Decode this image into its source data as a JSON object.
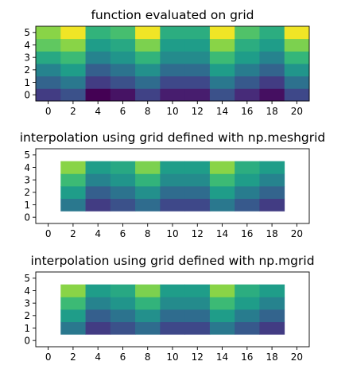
{
  "chart_data": [
    {
      "type": "heatmap",
      "title": "function evaluated on grid",
      "xlabel": "",
      "ylabel": "",
      "xlim": [
        -1,
        21
      ],
      "ylim": [
        -0.5,
        5.5
      ],
      "xticks": [
        "0",
        "2",
        "4",
        "6",
        "8",
        "10",
        "12",
        "14",
        "16",
        "18",
        "20"
      ],
      "yticks": [
        "0",
        "1",
        "2",
        "3",
        "4",
        "5"
      ],
      "x": [
        0,
        2,
        4,
        6,
        8,
        10,
        12,
        14,
        16,
        18,
        20
      ],
      "y": [
        0,
        1,
        2,
        3,
        4,
        5
      ],
      "colormap": "viridis",
      "values": [
        [
          0.18,
          0.25,
          0.0,
          0.05,
          0.2,
          0.08,
          0.08,
          0.25,
          0.12,
          0.04,
          0.22
        ],
        [
          0.32,
          0.4,
          0.18,
          0.25,
          0.35,
          0.22,
          0.22,
          0.4,
          0.28,
          0.18,
          0.37
        ],
        [
          0.45,
          0.55,
          0.3,
          0.38,
          0.5,
          0.35,
          0.35,
          0.55,
          0.42,
          0.32,
          0.52
        ],
        [
          0.6,
          0.68,
          0.45,
          0.52,
          0.65,
          0.48,
          0.48,
          0.68,
          0.55,
          0.45,
          0.66
        ],
        [
          0.75,
          0.82,
          0.55,
          0.6,
          0.8,
          0.55,
          0.55,
          0.82,
          0.62,
          0.55,
          0.8
        ],
        [
          0.82,
          0.98,
          0.65,
          0.7,
          0.98,
          0.62,
          0.62,
          0.98,
          0.72,
          0.62,
          0.98
        ]
      ]
    },
    {
      "type": "heatmap",
      "title": "interpolation using grid defined with np.meshgrid",
      "xlabel": "",
      "ylabel": "",
      "xlim": [
        -1,
        21
      ],
      "ylim": [
        -0.5,
        5.5
      ],
      "xticks": [
        "0",
        "2",
        "4",
        "6",
        "8",
        "10",
        "12",
        "14",
        "16",
        "18",
        "20"
      ],
      "yticks": [
        "0",
        "1",
        "2",
        "3",
        "4",
        "5"
      ],
      "x": [
        2,
        4,
        6,
        8,
        10,
        12,
        14,
        16,
        18
      ],
      "y": [
        1,
        2,
        3,
        4
      ],
      "colormap": "viridis",
      "values": [
        [
          0.4,
          0.18,
          0.25,
          0.35,
          0.22,
          0.22,
          0.4,
          0.28,
          0.18
        ],
        [
          0.55,
          0.3,
          0.38,
          0.5,
          0.35,
          0.35,
          0.55,
          0.42,
          0.32
        ],
        [
          0.68,
          0.45,
          0.52,
          0.65,
          0.48,
          0.48,
          0.68,
          0.55,
          0.45
        ],
        [
          0.82,
          0.55,
          0.6,
          0.8,
          0.55,
          0.55,
          0.82,
          0.62,
          0.55
        ]
      ]
    },
    {
      "type": "heatmap",
      "title": "interpolation using grid defined with np.mgrid",
      "xlabel": "",
      "ylabel": "",
      "xlim": [
        -1,
        21
      ],
      "ylim": [
        -0.5,
        5.5
      ],
      "xticks": [
        "0",
        "2",
        "4",
        "6",
        "8",
        "10",
        "12",
        "14",
        "16",
        "18",
        "20"
      ],
      "yticks": [
        "0",
        "1",
        "2",
        "3",
        "4",
        "5"
      ],
      "x": [
        2,
        4,
        6,
        8,
        10,
        12,
        14,
        16,
        18
      ],
      "y": [
        1,
        2,
        3,
        4
      ],
      "colormap": "viridis",
      "values": [
        [
          0.4,
          0.18,
          0.25,
          0.35,
          0.22,
          0.22,
          0.4,
          0.28,
          0.18
        ],
        [
          0.55,
          0.3,
          0.38,
          0.5,
          0.35,
          0.35,
          0.55,
          0.42,
          0.32
        ],
        [
          0.68,
          0.45,
          0.52,
          0.65,
          0.48,
          0.48,
          0.68,
          0.55,
          0.45
        ],
        [
          0.82,
          0.55,
          0.6,
          0.8,
          0.55,
          0.55,
          0.82,
          0.62,
          0.55
        ]
      ]
    }
  ]
}
